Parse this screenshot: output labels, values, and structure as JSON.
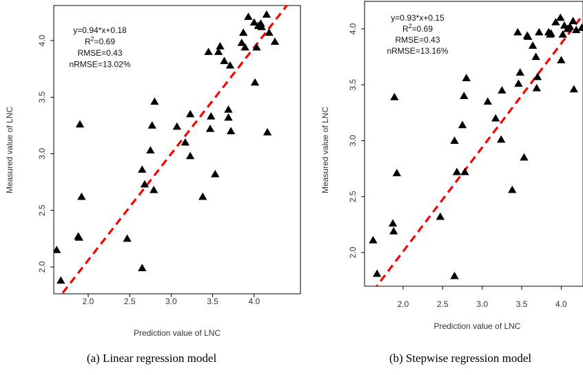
{
  "chart_data": [
    {
      "type": "scatter",
      "caption": "(a) Linear regression model",
      "xlabel": "Prediction value of LNC",
      "ylabel": "Measured value of LNC",
      "xlim": [
        1.55,
        4.35
      ],
      "ylim": [
        1.75,
        4.3
      ],
      "xticks": [
        "2.0",
        "2.5",
        "3.0",
        "3.5",
        "4.0"
      ],
      "yticks": [
        "2.0",
        "2.5",
        "3.0",
        "3.5",
        "4.0"
      ],
      "stats": [
        "y=0.94*x+0.18",
        "R",
        "2",
        "=0.69",
        "RMSE=0.43",
        "nRMSE=13.02%"
      ],
      "fit": {
        "slope": 0.94,
        "intercept": 0.18
      },
      "points": [
        [
          1.62,
          2.15
        ],
        [
          1.67,
          1.88
        ],
        [
          1.88,
          2.27
        ],
        [
          1.89,
          2.26
        ],
        [
          1.9,
          3.26
        ],
        [
          1.92,
          2.62
        ],
        [
          2.47,
          2.25
        ],
        [
          2.65,
          2.86
        ],
        [
          2.65,
          1.99
        ],
        [
          2.68,
          2.73
        ],
        [
          2.75,
          3.03
        ],
        [
          2.77,
          3.25
        ],
        [
          2.79,
          2.68
        ],
        [
          2.8,
          3.46
        ],
        [
          3.07,
          3.24
        ],
        [
          3.17,
          3.1
        ],
        [
          3.23,
          2.98
        ],
        [
          3.23,
          3.35
        ],
        [
          3.38,
          2.62
        ],
        [
          3.45,
          3.9
        ],
        [
          3.47,
          3.22
        ],
        [
          3.48,
          3.33
        ],
        [
          3.53,
          2.82
        ],
        [
          3.57,
          3.9
        ],
        [
          3.59,
          3.95
        ],
        [
          3.64,
          3.82
        ],
        [
          3.69,
          3.39
        ],
        [
          3.69,
          3.32
        ],
        [
          3.71,
          3.78
        ],
        [
          3.72,
          3.2
        ],
        [
          3.85,
          3.98
        ],
        [
          3.87,
          4.07
        ],
        [
          3.89,
          3.94
        ],
        [
          3.93,
          4.21
        ],
        [
          4.0,
          4.16
        ],
        [
          4.01,
          3.63
        ],
        [
          4.03,
          3.94
        ],
        [
          4.05,
          4.13
        ],
        [
          4.08,
          4.15
        ],
        [
          4.09,
          4.12
        ],
        [
          4.15,
          4.23
        ],
        [
          4.16,
          3.19
        ],
        [
          4.18,
          4.07
        ],
        [
          4.25,
          3.99
        ]
      ]
    },
    {
      "type": "scatter",
      "caption": "(b) Stepwise regression model",
      "xlabel": "Prediction value of LNC",
      "ylabel": "Measured value of LNC",
      "xlim": [
        1.55,
        4.35
      ],
      "ylim": [
        1.72,
        4.13
      ],
      "xticks": [
        "2.0",
        "2.5",
        "3.0",
        "3.5",
        "4.0"
      ],
      "yticks": [
        "2.0",
        "2.5",
        "3.0",
        "3.5",
        "4.0"
      ],
      "stats": [
        "y=0.93*x+0.15",
        "R",
        "2",
        "=0.69",
        "RMSE=0.43",
        "nRMSE=13.16%"
      ],
      "fit": {
        "slope": 0.93,
        "intercept": 0.15
      },
      "points": [
        [
          1.62,
          2.11
        ],
        [
          1.67,
          1.81
        ],
        [
          1.87,
          2.26
        ],
        [
          1.88,
          2.19
        ],
        [
          1.89,
          3.39
        ],
        [
          1.92,
          2.71
        ],
        [
          2.47,
          2.32
        ],
        [
          2.65,
          3.0
        ],
        [
          2.65,
          1.79
        ],
        [
          2.68,
          2.72
        ],
        [
          2.75,
          3.14
        ],
        [
          2.77,
          3.4
        ],
        [
          2.78,
          2.72
        ],
        [
          2.8,
          3.56
        ],
        [
          3.07,
          3.35
        ],
        [
          3.17,
          3.2
        ],
        [
          3.24,
          3.01
        ],
        [
          3.25,
          3.45
        ],
        [
          3.38,
          2.56
        ],
        [
          3.45,
          3.97
        ],
        [
          3.46,
          3.51
        ],
        [
          3.48,
          3.61
        ],
        [
          3.53,
          2.85
        ],
        [
          3.57,
          3.94
        ],
        [
          3.58,
          3.93
        ],
        [
          3.64,
          3.85
        ],
        [
          3.68,
          3.75
        ],
        [
          3.69,
          3.47
        ],
        [
          3.7,
          3.57
        ],
        [
          3.72,
          3.97
        ],
        [
          3.84,
          3.97
        ],
        [
          3.86,
          3.95
        ],
        [
          3.87,
          3.96
        ],
        [
          3.93,
          4.06
        ],
        [
          3.99,
          4.1
        ],
        [
          4.0,
          3.72
        ],
        [
          4.02,
          3.95
        ],
        [
          4.04,
          4.03
        ],
        [
          4.08,
          4.0
        ],
        [
          4.11,
          4.02
        ],
        [
          4.15,
          4.07
        ],
        [
          4.16,
          3.46
        ],
        [
          4.19,
          3.99
        ],
        [
          4.26,
          4.01
        ]
      ]
    }
  ]
}
